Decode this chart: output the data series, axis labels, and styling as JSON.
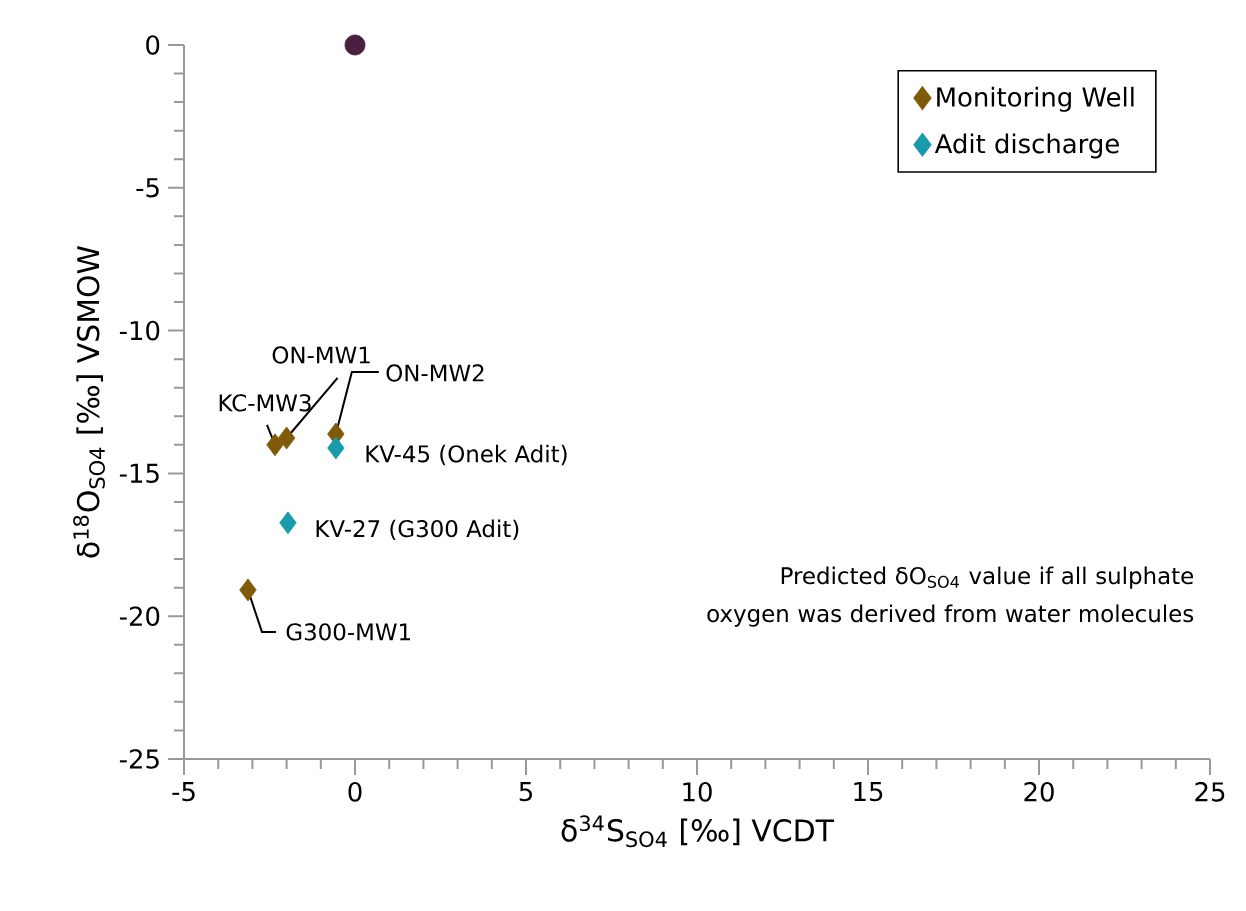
{
  "chart_data": {
    "type": "scatter",
    "xlabel": "δ$^{34}$S$_{SO4}$ [‰] VCDT",
    "ylabel": "δ$^{18}$O$_{SO4}$ [‰] VSMOW",
    "xlim": [
      -5,
      25
    ],
    "ylim": [
      -25,
      0
    ],
    "xticks": [
      -5,
      0,
      5,
      10,
      15,
      20,
      25
    ],
    "yticks": [
      -25,
      -20,
      -15,
      -10,
      -5,
      0
    ],
    "grid": false,
    "legend": "top right",
    "series": [
      {
        "name": "Monitoring Well",
        "color": "#7f5a0a",
        "marker": "diamond",
        "x": [
          -2.34,
          -2.0,
          -0.56,
          -3.13
        ],
        "values": [
          -14.0,
          -13.76,
          -13.62,
          -19.08
        ]
      },
      {
        "name": "Adit discharge",
        "color": "#1a9aab",
        "marker": "diamond",
        "x": [
          -0.56,
          -1.96
        ],
        "values": [
          -14.11,
          -16.73
        ]
      },
      {
        "color": "#4a2040",
        "marker": "circle",
        "x": [
          0
        ],
        "values": [
          0
        ]
      }
    ],
    "annotations": [
      {
        "text": "KC-MW3",
        "x": -2.34,
        "y": -14.0
      },
      {
        "text": "ON-MW1",
        "x": -2.0,
        "y": -13.76
      },
      {
        "text": "ON-MW2",
        "x": -0.56,
        "y": -13.62
      },
      {
        "text": "KV-45 (Onek Adit)",
        "x": -0.56,
        "y": -14.11
      },
      {
        "text": "KV-27 (G300 Adit)",
        "x": -1.96,
        "y": -16.73
      },
      {
        "text": "G300-MW1",
        "x": -3.13,
        "y": -19.08
      },
      "Predicted δO$_{SO4}$ value if all sulphate oxygen was derived from water molecules"
    ]
  }
}
